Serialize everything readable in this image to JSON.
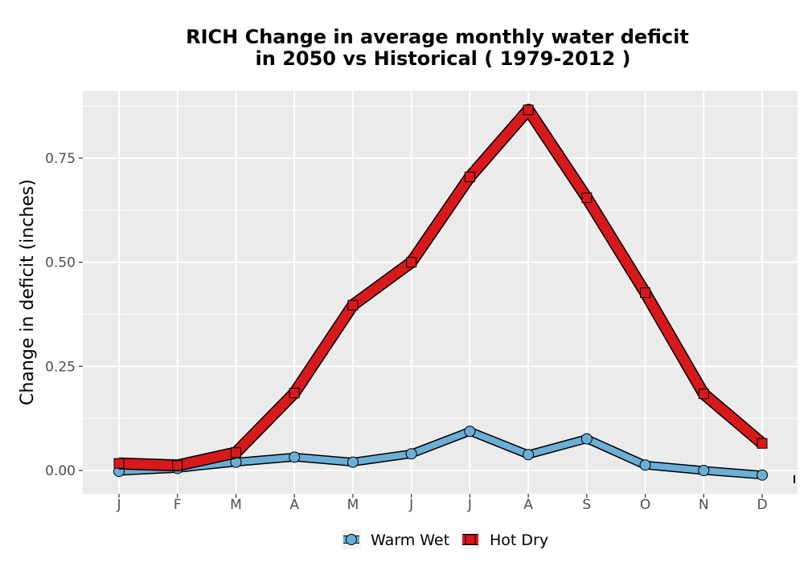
{
  "chart_data": {
    "type": "line",
    "title_line1": "RICH  Change in average monthly water deficit",
    "title_line2": "in 2050 vs Historical ( 1979-2012 )",
    "xlabel": "",
    "ylabel": "Change in deficit (inches)",
    "categories": [
      "J",
      "F",
      "M",
      "A",
      "M",
      "J",
      "J",
      "A",
      "S",
      "O",
      "N",
      "D"
    ],
    "ylim": [
      -0.05,
      0.9
    ],
    "yticks": [
      0.0,
      0.25,
      0.5,
      0.75
    ],
    "ytick_labels": [
      "0.00",
      "0.25",
      "0.50",
      "0.75"
    ],
    "grid": true,
    "legend_position": "bottom",
    "series": [
      {
        "name": "Warm Wet",
        "color": "#6baed6",
        "marker": "circle",
        "values": [
          -0.002,
          0.005,
          0.02,
          0.032,
          0.02,
          0.04,
          0.094,
          0.038,
          0.076,
          0.013,
          0.0,
          -0.011
        ]
      },
      {
        "name": "Hot Dry",
        "color": "#d7191c",
        "marker": "square",
        "values": [
          0.017,
          0.012,
          0.043,
          0.186,
          0.397,
          0.5,
          0.705,
          0.866,
          0.655,
          0.427,
          0.184,
          0.065
        ]
      }
    ]
  }
}
